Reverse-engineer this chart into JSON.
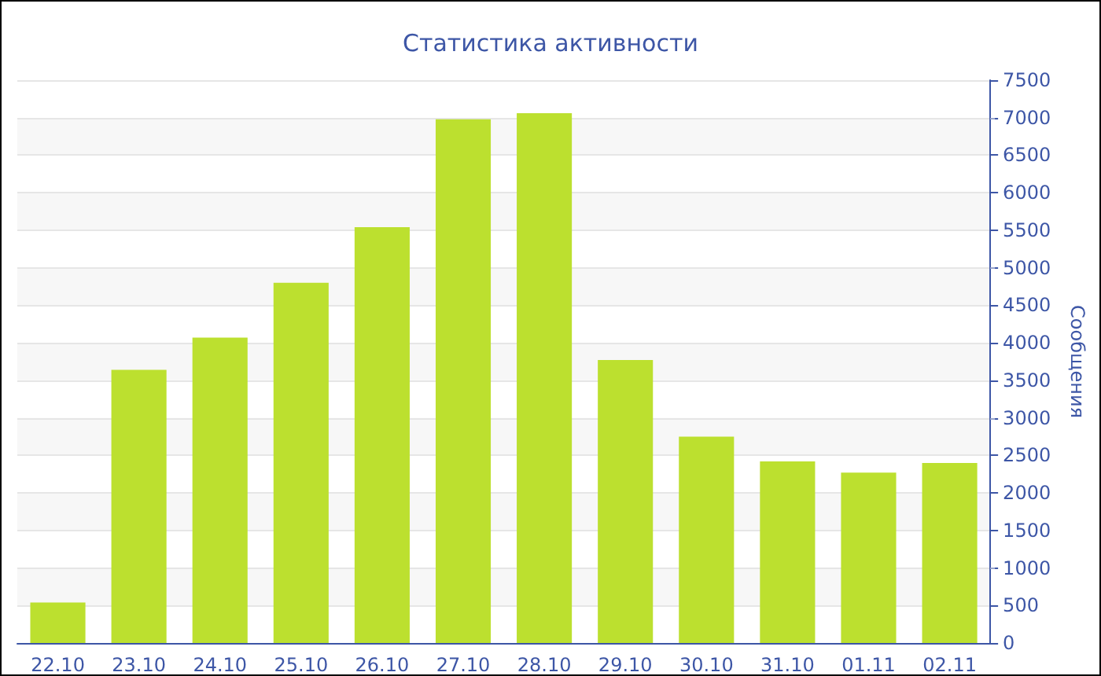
{
  "chart_data": {
    "type": "bar",
    "title": "Статистика активности",
    "ylabel": "Сообщения",
    "categories": [
      "22.10",
      "23.10",
      "24.10",
      "25.10",
      "26.10",
      "27.10",
      "28.10",
      "29.10",
      "30.10",
      "31.10",
      "01.11",
      "02.11"
    ],
    "values": [
      540,
      3640,
      4070,
      4800,
      5540,
      6980,
      7060,
      3770,
      2750,
      2420,
      2270,
      2400
    ],
    "color": "#bce02f",
    "ylim": [
      0,
      7500
    ],
    "yticks": [
      0,
      500,
      1000,
      1500,
      2000,
      2500,
      3000,
      3500,
      4000,
      4500,
      5000,
      5500,
      6000,
      6500,
      7000,
      7500
    ],
    "grid": "y"
  }
}
